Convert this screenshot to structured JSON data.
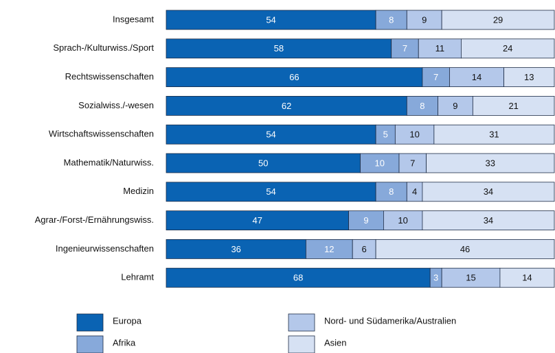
{
  "chart_data": {
    "type": "bar",
    "orientation": "horizontal",
    "stacked": true,
    "categories": [
      "Insgesamt",
      "Sprach-/Kulturwiss./Sport",
      "Rechtswissenschaften",
      "Sozialwiss./-wesen",
      "Wirtschaftswissenschaften",
      "Mathematik/Naturwiss.",
      "Medizin",
      "Agrar-/Forst-/Ernährungswiss.",
      "Ingenieurwissenschaften",
      "Lehramt"
    ],
    "series": [
      {
        "name": "Europa",
        "color": "#0a63b3",
        "values": [
          54,
          58,
          66,
          62,
          54,
          50,
          54,
          47,
          36,
          68
        ]
      },
      {
        "name": "Afrika",
        "color": "#87a9da",
        "values": [
          8,
          7,
          7,
          8,
          5,
          10,
          8,
          9,
          12,
          3
        ]
      },
      {
        "name": "Nord- und Südamerika/Australien",
        "color": "#b4c8ea",
        "values": [
          9,
          11,
          14,
          9,
          10,
          7,
          4,
          10,
          6,
          15
        ]
      },
      {
        "name": "Asien",
        "color": "#d6e1f3",
        "values": [
          29,
          24,
          13,
          21,
          31,
          33,
          34,
          34,
          46,
          14
        ]
      }
    ],
    "legend": "bottom"
  }
}
